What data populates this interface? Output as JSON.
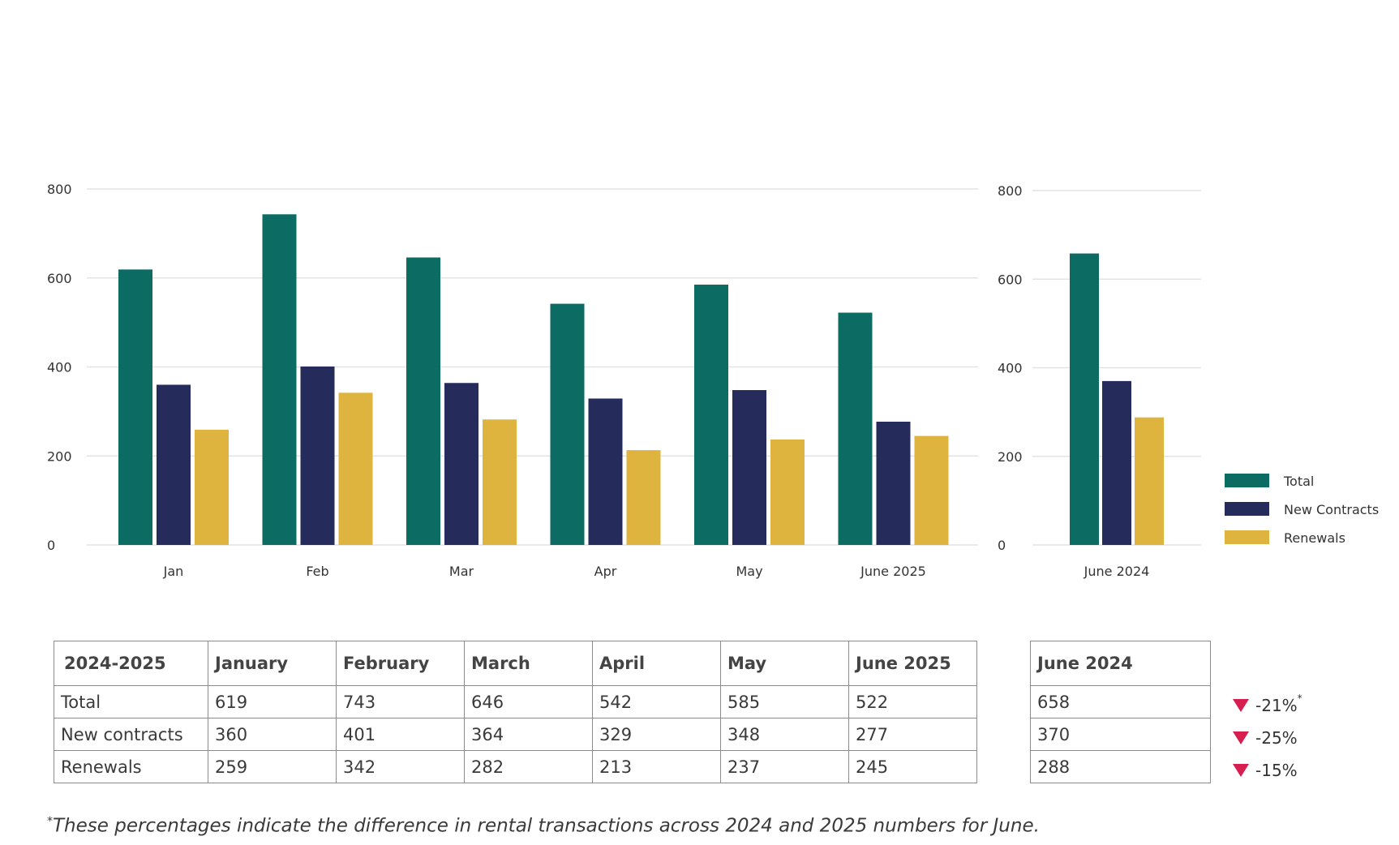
{
  "chart_data": [
    {
      "type": "bar",
      "categories": [
        "Jan",
        "Feb",
        "Mar",
        "Apr",
        "May",
        "June 2025"
      ],
      "series": [
        {
          "name": "Total",
          "values": [
            619,
            743,
            646,
            542,
            585,
            522
          ]
        },
        {
          "name": "New Contracts",
          "values": [
            360,
            401,
            364,
            329,
            348,
            277
          ]
        },
        {
          "name": "Renewals",
          "values": [
            259,
            342,
            282,
            213,
            237,
            245
          ]
        }
      ],
      "ylim": [
        0,
        800
      ],
      "yticks": [
        0,
        200,
        400,
        600,
        800
      ],
      "grid": true
    },
    {
      "type": "bar",
      "categories": [
        "June 2024"
      ],
      "series": [
        {
          "name": "Total",
          "values": [
            658
          ]
        },
        {
          "name": "New Contracts",
          "values": [
            370
          ]
        },
        {
          "name": "Renewals",
          "values": [
            288
          ]
        }
      ],
      "ylim": [
        0,
        800
      ],
      "yticks": [
        0,
        200,
        400,
        600,
        800
      ],
      "grid": true,
      "legend": "right"
    }
  ],
  "colors": {
    "Total": "#0c6b63",
    "New Contracts": "#252b5a",
    "Renewals": "#deb43f",
    "grid": "#e3e3e3",
    "decrease": "#d61f4f"
  },
  "legend": [
    "Total",
    "New Contracts",
    "Renewals"
  ],
  "table": {
    "header": [
      "2024-2025",
      "January",
      "February",
      "March",
      "April",
      "May",
      "June 2025"
    ],
    "rows": [
      {
        "label": "Total",
        "values": [
          "619",
          "743",
          "646",
          "542",
          "585",
          "522"
        ]
      },
      {
        "label": "New contracts",
        "values": [
          "360",
          "401",
          "364",
          "329",
          "348",
          "277"
        ]
      },
      {
        "label": "Renewals",
        "values": [
          "259",
          "342",
          "282",
          "213",
          "237",
          "245"
        ]
      }
    ]
  },
  "june2024_table": {
    "header": "June 2024",
    "values": [
      "658",
      "370",
      "288"
    ]
  },
  "changes": [
    {
      "text": "-21%",
      "marker": "*"
    },
    {
      "text": "-25%",
      "marker": ""
    },
    {
      "text": "-15%",
      "marker": ""
    }
  ],
  "change_icon": "down-triangle-icon",
  "footnote": {
    "marker": "*",
    "text": "These percentages indicate the difference in rental transactions across 2024 and 2025 numbers for June."
  }
}
